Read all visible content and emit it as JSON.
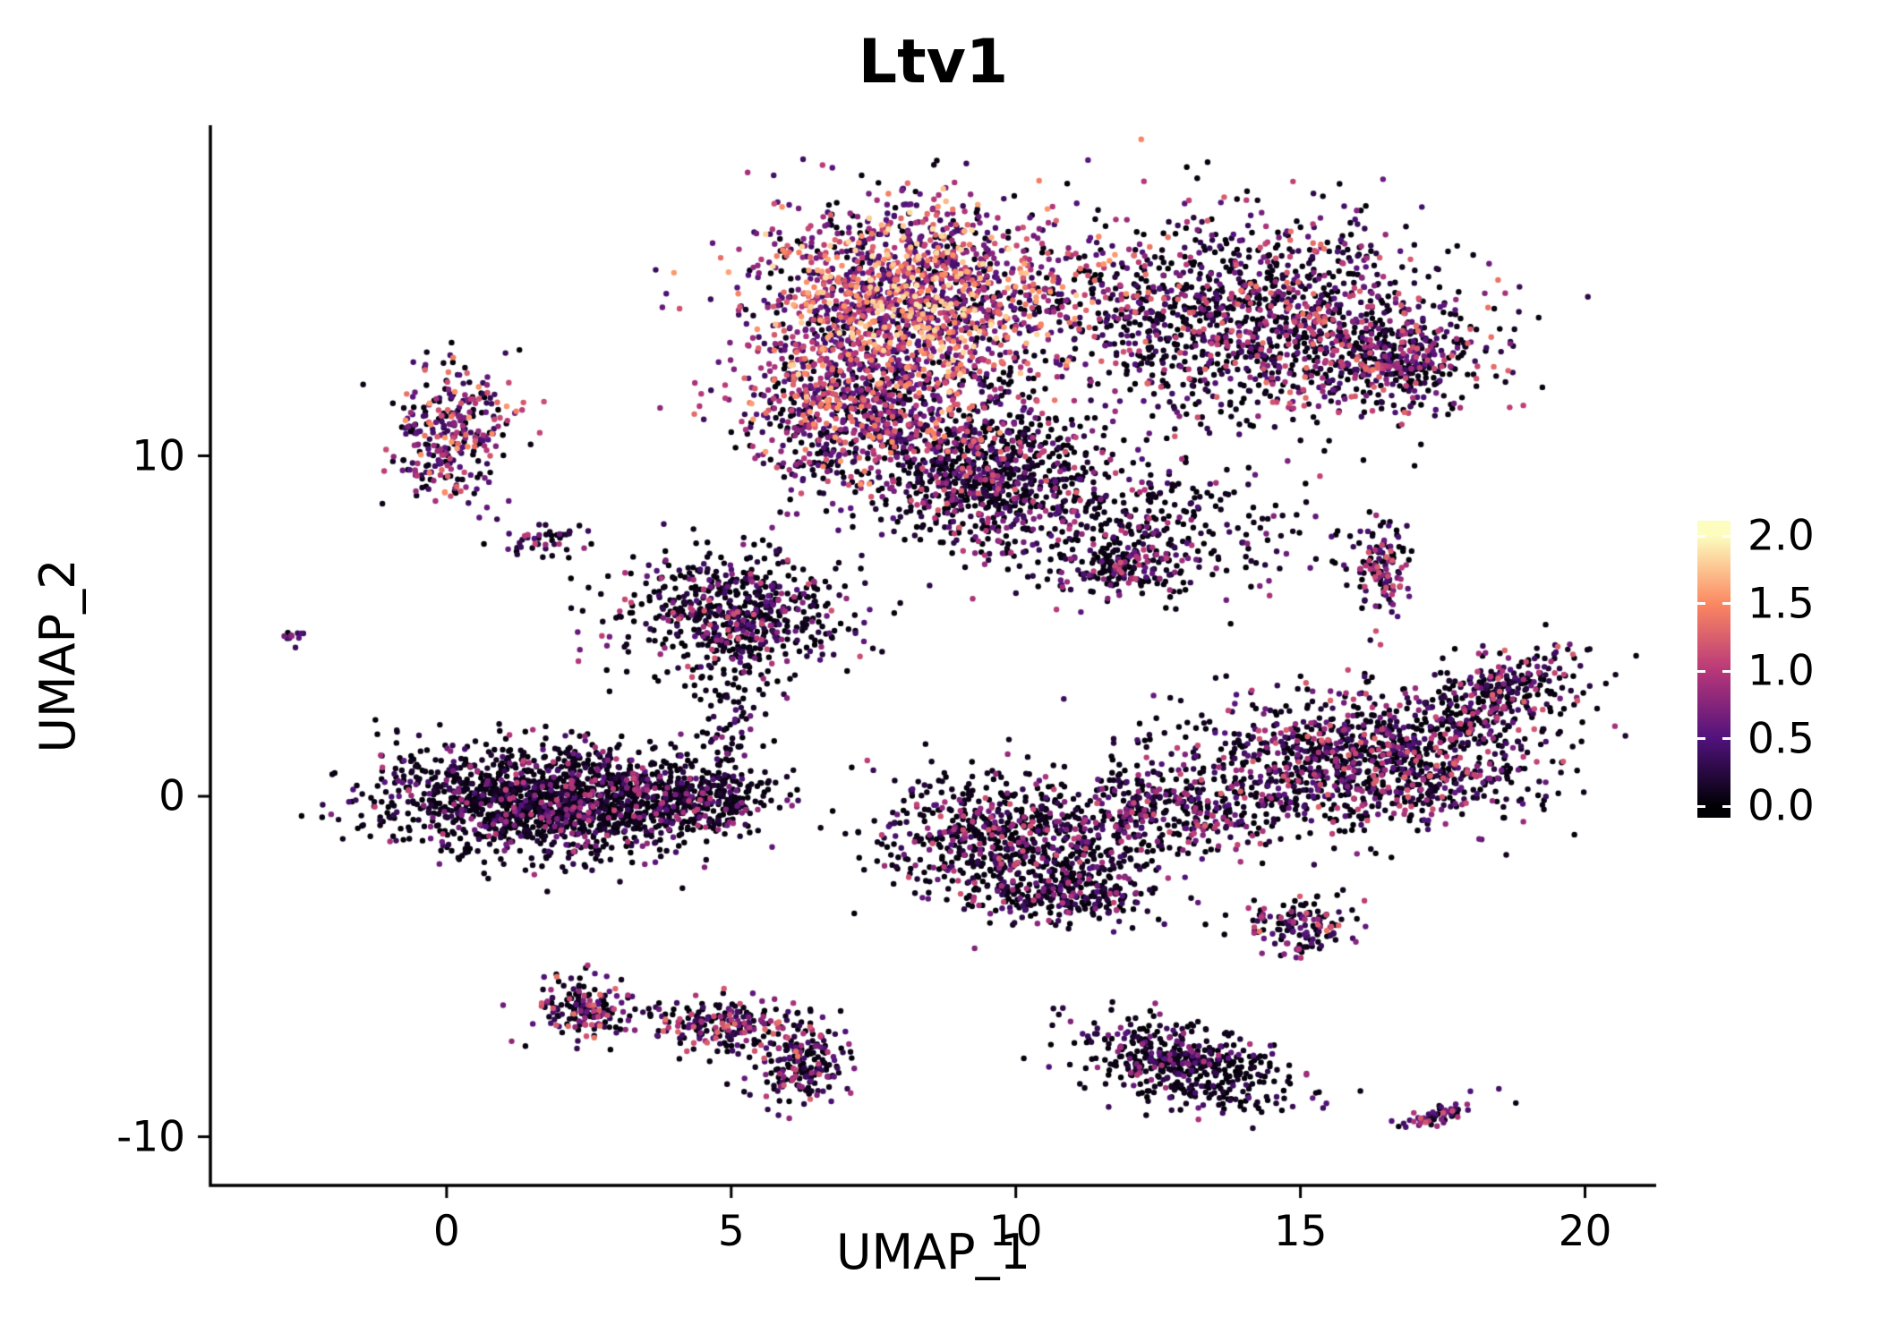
{
  "chart_data": {
    "type": "scatter",
    "title": "Ltv1",
    "xlabel": "UMAP_1",
    "ylabel": "UMAP_2",
    "xlim": [
      -4.15,
      21.25
    ],
    "ylim": [
      -11.43,
      19.71
    ],
    "x_ticks": [
      "0",
      "5",
      "10",
      "15",
      "20"
    ],
    "x_tick_values": [
      0,
      5,
      10,
      15,
      20
    ],
    "y_ticks": [
      "-10",
      "0",
      "10"
    ],
    "y_tick_values": [
      -10,
      0,
      10
    ],
    "grid": false,
    "background": "#FFFFFF",
    "axis_color": "#000000",
    "point_radius": 3.2,
    "seed": 42,
    "legend_position": "right",
    "colorbar": {
      "tick_labels": [
        "2.0",
        "1.5",
        "1.0",
        "0.5",
        "0.0"
      ],
      "tick_values": [
        2.0,
        1.5,
        1.0,
        0.5,
        0.0
      ],
      "vmin": 0.0,
      "vmax": 2.0,
      "colormap": "magma",
      "stops": [
        [
          0,
          "#000004"
        ],
        [
          0.25,
          "#51127C"
        ],
        [
          0.5,
          "#B73779"
        ],
        [
          0.75,
          "#FB8861"
        ],
        [
          1,
          "#FCFDBF"
        ]
      ]
    },
    "clusters": [
      {
        "name": "top-center-bright",
        "cx": 8.1,
        "cy": 14.7,
        "sx": 1.35,
        "sy": 1.35,
        "n": 1600,
        "pz": 0.18,
        "lo": 0.35,
        "hi": 1.9
      },
      {
        "name": "top-center-lower",
        "cx": 7.3,
        "cy": 11.6,
        "sx": 1.1,
        "sy": 1.0,
        "n": 700,
        "pz": 0.3,
        "lo": 0.3,
        "hi": 1.6
      },
      {
        "name": "top-left-edge",
        "cx": 6.6,
        "cy": 10.2,
        "sx": 0.45,
        "sy": 0.8,
        "n": 90,
        "pz": 0.4,
        "lo": 0.3,
        "hi": 1.4
      },
      {
        "name": "top-center-dark",
        "cx": 9.3,
        "cy": 9.7,
        "sx": 1.05,
        "sy": 1.0,
        "n": 800,
        "pz": 0.6,
        "lo": 0.2,
        "hi": 1.3
      },
      {
        "name": "top-right-main",
        "cx": 14.1,
        "cy": 14.0,
        "sx": 1.9,
        "sy": 1.45,
        "n": 1400,
        "pz": 0.5,
        "lo": 0.2,
        "hi": 1.4
      },
      {
        "name": "top-right-lobe",
        "cx": 16.6,
        "cy": 12.8,
        "sx": 0.8,
        "sy": 0.7,
        "n": 350,
        "pz": 0.45,
        "lo": 0.3,
        "hi": 1.3
      },
      {
        "name": "mid-scatter",
        "cx": 11.6,
        "cy": 7.9,
        "sx": 1.6,
        "sy": 1.0,
        "n": 450,
        "pz": 0.62,
        "lo": 0.2,
        "hi": 1.1
      },
      {
        "name": "mid-tail",
        "cx": 11.9,
        "cy": 6.7,
        "sx": 0.45,
        "sy": 0.4,
        "n": 130,
        "pz": 0.5,
        "lo": 0.3,
        "hi": 1.2
      },
      {
        "name": "left-upper",
        "cx": 0.1,
        "cy": 10.7,
        "sx": 0.5,
        "sy": 1.05,
        "n": 300,
        "pz": 0.28,
        "lo": 0.3,
        "hi": 1.6
      },
      {
        "name": "left-upper-small",
        "cx": 1.7,
        "cy": 7.5,
        "sx": 0.4,
        "sy": 0.25,
        "n": 45,
        "pz": 0.5,
        "lo": 0.2,
        "hi": 1.1
      },
      {
        "name": "far-left-speck",
        "cx": -2.66,
        "cy": 4.74,
        "sx": 0.1,
        "sy": 0.1,
        "n": 12,
        "pz": 0.4,
        "lo": 0.3,
        "hi": 1.0
      },
      {
        "name": "mid-left",
        "cx": 5.1,
        "cy": 5.3,
        "sx": 0.95,
        "sy": 0.9,
        "n": 650,
        "pz": 0.66,
        "lo": 0.2,
        "hi": 1.2
      },
      {
        "name": "mid-left-trail",
        "cx": 5.0,
        "cy": 2.1,
        "sx": 0.3,
        "sy": 1.1,
        "n": 80,
        "pz": 0.7,
        "lo": 0.2,
        "hi": 0.9
      },
      {
        "name": "left-main",
        "cx": 1.9,
        "cy": -0.1,
        "sx": 1.5,
        "sy": 0.8,
        "n": 1600,
        "pz": 0.74,
        "lo": 0.15,
        "hi": 1.1
      },
      {
        "name": "left-main-tail",
        "cx": 4.6,
        "cy": -0.1,
        "sx": 0.6,
        "sy": 0.4,
        "n": 200,
        "pz": 0.72,
        "lo": 0.15,
        "hi": 1.0
      },
      {
        "name": "right-small-vertical",
        "cx": 16.4,
        "cy": 6.8,
        "sx": 0.25,
        "sy": 0.7,
        "n": 130,
        "pz": 0.45,
        "lo": 0.3,
        "hi": 1.3
      },
      {
        "name": "right-main",
        "cx": 16.1,
        "cy": 1.0,
        "sx": 1.7,
        "sy": 1.0,
        "n": 1200,
        "pz": 0.56,
        "lo": 0.2,
        "hi": 1.3
      },
      {
        "name": "right-branch",
        "cx": 18.6,
        "cy": 3.0,
        "sx": 0.85,
        "sy": 0.5,
        "n": 280,
        "pz": 0.5,
        "lo": 0.2,
        "hi": 1.3,
        "angle": 40
      },
      {
        "name": "center-bottom",
        "cx": 10.1,
        "cy": -1.3,
        "sx": 1.2,
        "sy": 0.95,
        "n": 800,
        "pz": 0.62,
        "lo": 0.2,
        "hi": 1.2
      },
      {
        "name": "center-bottom-tail",
        "cx": 11.0,
        "cy": -2.9,
        "sx": 0.75,
        "sy": 0.4,
        "n": 220,
        "pz": 0.6,
        "lo": 0.2,
        "hi": 1.1
      },
      {
        "name": "center-bridge",
        "cx": 12.9,
        "cy": -0.5,
        "sx": 0.9,
        "sy": 0.6,
        "n": 250,
        "pz": 0.6,
        "lo": 0.2,
        "hi": 1.2
      },
      {
        "name": "small-mid-bottom",
        "cx": 15.1,
        "cy": -3.7,
        "sx": 0.5,
        "sy": 0.45,
        "n": 140,
        "pz": 0.5,
        "lo": 0.3,
        "hi": 1.4
      },
      {
        "name": "bottom-left-small",
        "cx": 2.4,
        "cy": -6.3,
        "sx": 0.4,
        "sy": 0.45,
        "n": 160,
        "pz": 0.45,
        "lo": 0.3,
        "hi": 1.4
      },
      {
        "name": "bottom-left-trail",
        "cx": 3.5,
        "cy": -6.4,
        "sx": 0.5,
        "sy": 0.12,
        "n": 20,
        "pz": 0.5,
        "lo": 0.3,
        "hi": 1.2
      },
      {
        "name": "bottom-crescent-a",
        "cx": 4.9,
        "cy": -6.7,
        "sx": 0.6,
        "sy": 0.4,
        "n": 180,
        "pz": 0.5,
        "lo": 0.25,
        "hi": 1.4
      },
      {
        "name": "bottom-crescent-b",
        "cx": 6.2,
        "cy": -7.8,
        "sx": 0.45,
        "sy": 0.7,
        "n": 200,
        "pz": 0.5,
        "lo": 0.25,
        "hi": 1.4
      },
      {
        "name": "bottom-middle",
        "cx": 13.0,
        "cy": -7.9,
        "sx": 1.0,
        "sy": 0.55,
        "n": 480,
        "pz": 0.72,
        "lo": 0.15,
        "hi": 1.0,
        "angle": -25
      },
      {
        "name": "bottom-right-dash",
        "cx": 17.4,
        "cy": -9.4,
        "sx": 0.45,
        "sy": 0.13,
        "n": 55,
        "pz": 0.35,
        "lo": 0.4,
        "hi": 1.2,
        "angle": 30
      }
    ]
  }
}
